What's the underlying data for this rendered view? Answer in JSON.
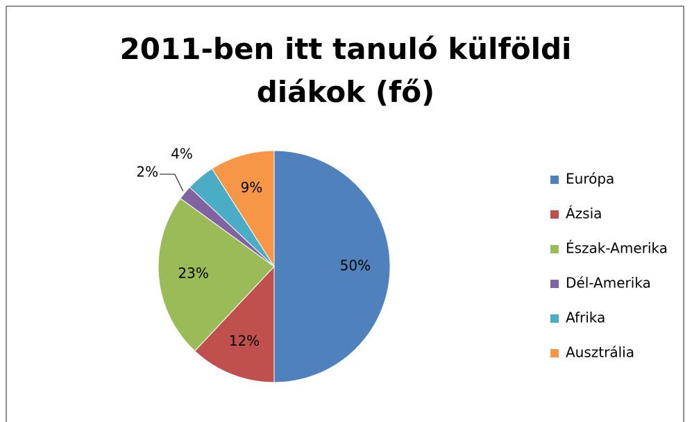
{
  "chart_data": {
    "type": "pie",
    "title": "2011-ben itt tanuló külföldi diákok (fő)",
    "categories": [
      "Európa",
      "Ázsia",
      "Észak-Amerika",
      "Dél-Amerika",
      "Afrika",
      "Ausztrália"
    ],
    "values": [
      50,
      12,
      23,
      2,
      4,
      9
    ],
    "value_labels": [
      "50%",
      "12%",
      "23%",
      "2%",
      "4%",
      "9%"
    ],
    "colors": [
      "#4f81bd",
      "#c0504d",
      "#9bbb59",
      "#8064a2",
      "#4bacc6",
      "#f79646"
    ],
    "legend": "right"
  }
}
